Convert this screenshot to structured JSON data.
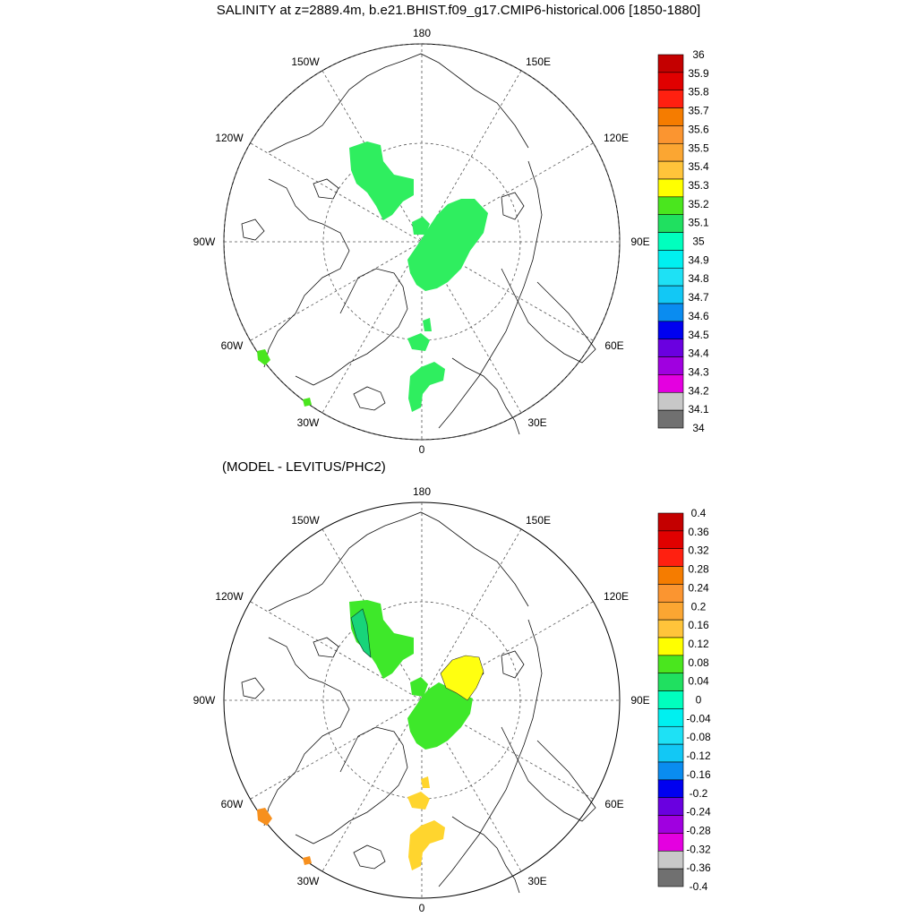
{
  "title": "SALINITY at z=2889.4m, b.e21.BHIST.f09_g17.CMIP6-historical.006 [1850-1880]",
  "subtitle": "(MODEL - LEVITUS/PHC2)",
  "longitude_labels": {
    "top": "180",
    "bottom": "0",
    "l150": "150W",
    "r150": "150E",
    "l120": "120W",
    "r120": "120E",
    "l90": "90W",
    "r90": "90E",
    "l60": "60W",
    "r60": "60E",
    "l30": "30W",
    "r30": "30E"
  },
  "colors": {
    "map_fill_top": "#2fee5f",
    "diff_green": "#3ee82a",
    "diff_teal": "#18d47a",
    "diff_yellow": "#ffff10",
    "diff_gold": "#ffd52e",
    "diff_orange": "#f7901e"
  },
  "colorbars": {
    "top": {
      "labels": [
        "36",
        "35.9",
        "35.8",
        "35.7",
        "35.6",
        "35.5",
        "35.4",
        "35.3",
        "35.2",
        "35.1",
        "35",
        "34.9",
        "34.8",
        "34.7",
        "34.6",
        "34.5",
        "34.4",
        "34.3",
        "34.2",
        "34.1",
        "34"
      ],
      "colors": [
        "#c40000",
        "#e00000",
        "#ff2010",
        "#f57c00",
        "#fb9530",
        "#fba632",
        "#ffc43a",
        "#ffff00",
        "#4ae61e",
        "#20e060",
        "#00ffbe",
        "#00f0f0",
        "#1ee1f5",
        "#12c8f5",
        "#0a8cf0",
        "#0000f0",
        "#6a00e0",
        "#a000e0",
        "#e400e0",
        "#c8c8c8",
        "#707070"
      ]
    },
    "bottom": {
      "labels": [
        "0.4",
        "0.36",
        "0.32",
        "0.28",
        "0.24",
        "0.2",
        "0.16",
        "0.12",
        "0.08",
        "0.04",
        "0",
        "-0.04",
        "-0.08",
        "-0.12",
        "-0.16",
        "-0.2",
        "-0.24",
        "-0.28",
        "-0.32",
        "-0.36",
        "-0.4"
      ],
      "colors": [
        "#c40000",
        "#e00000",
        "#ff2010",
        "#f57c00",
        "#fb9530",
        "#fba632",
        "#ffc43a",
        "#ffff00",
        "#4ae61e",
        "#20e060",
        "#00ffbe",
        "#00f0f0",
        "#1ee1f5",
        "#12c8f5",
        "#0a8cf0",
        "#0000f0",
        "#6a00e0",
        "#a000e0",
        "#e400e0",
        "#c8c8c8",
        "#707070"
      ]
    }
  }
}
